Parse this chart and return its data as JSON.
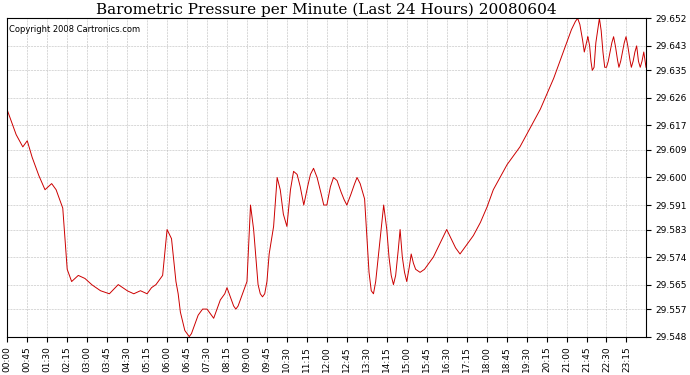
{
  "title": "Barometric Pressure per Minute (Last 24 Hours) 20080604",
  "copyright": "Copyright 2008 Cartronics.com",
  "line_color": "#cc0000",
  "bg_color": "#ffffff",
  "grid_color": "#bbbbbb",
  "ylim": [
    29.548,
    29.652
  ],
  "yticks": [
    29.548,
    29.557,
    29.565,
    29.574,
    29.583,
    29.591,
    29.6,
    29.609,
    29.617,
    29.626,
    29.635,
    29.643,
    29.652
  ],
  "xtick_labels": [
    "00:00",
    "00:45",
    "01:30",
    "02:15",
    "03:00",
    "03:45",
    "04:30",
    "05:15",
    "06:00",
    "06:45",
    "07:30",
    "08:15",
    "09:00",
    "09:45",
    "10:30",
    "11:15",
    "12:00",
    "12:45",
    "13:30",
    "14:15",
    "15:00",
    "15:45",
    "16:30",
    "17:15",
    "18:00",
    "18:45",
    "19:30",
    "20:15",
    "21:00",
    "21:45",
    "22:30",
    "23:15"
  ],
  "title_fontsize": 11,
  "tick_fontsize": 6.5,
  "copyright_fontsize": 6,
  "control_points": [
    [
      0,
      29.622
    ],
    [
      20,
      29.614
    ],
    [
      35,
      29.61
    ],
    [
      45,
      29.612
    ],
    [
      55,
      29.607
    ],
    [
      70,
      29.601
    ],
    [
      85,
      29.596
    ],
    [
      100,
      29.598
    ],
    [
      110,
      29.596
    ],
    [
      125,
      29.59
    ],
    [
      135,
      29.57
    ],
    [
      145,
      29.566
    ],
    [
      160,
      29.568
    ],
    [
      175,
      29.567
    ],
    [
      190,
      29.565
    ],
    [
      210,
      29.563
    ],
    [
      230,
      29.562
    ],
    [
      250,
      29.565
    ],
    [
      270,
      29.563
    ],
    [
      285,
      29.562
    ],
    [
      300,
      29.563
    ],
    [
      315,
      29.562
    ],
    [
      325,
      29.564
    ],
    [
      335,
      29.565
    ],
    [
      350,
      29.568
    ],
    [
      360,
      29.583
    ],
    [
      370,
      29.58
    ],
    [
      380,
      29.566
    ],
    [
      385,
      29.562
    ],
    [
      390,
      29.556
    ],
    [
      395,
      29.553
    ],
    [
      400,
      29.55
    ],
    [
      405,
      29.549
    ],
    [
      410,
      29.548
    ],
    [
      415,
      29.549
    ],
    [
      420,
      29.551
    ],
    [
      425,
      29.553
    ],
    [
      430,
      29.555
    ],
    [
      440,
      29.557
    ],
    [
      450,
      29.557
    ],
    [
      460,
      29.555
    ],
    [
      465,
      29.554
    ],
    [
      470,
      29.556
    ],
    [
      475,
      29.558
    ],
    [
      480,
      29.56
    ],
    [
      490,
      29.562
    ],
    [
      495,
      29.564
    ],
    [
      505,
      29.56
    ],
    [
      510,
      29.558
    ],
    [
      515,
      29.557
    ],
    [
      520,
      29.558
    ],
    [
      530,
      29.562
    ],
    [
      540,
      29.566
    ],
    [
      548,
      29.591
    ],
    [
      555,
      29.583
    ],
    [
      560,
      29.574
    ],
    [
      565,
      29.565
    ],
    [
      570,
      29.562
    ],
    [
      575,
      29.561
    ],
    [
      580,
      29.562
    ],
    [
      585,
      29.566
    ],
    [
      590,
      29.575
    ],
    [
      600,
      29.584
    ],
    [
      608,
      29.6
    ],
    [
      615,
      29.596
    ],
    [
      622,
      29.588
    ],
    [
      630,
      29.584
    ],
    [
      638,
      29.596
    ],
    [
      645,
      29.602
    ],
    [
      653,
      29.601
    ],
    [
      660,
      29.597
    ],
    [
      668,
      29.591
    ],
    [
      675,
      29.596
    ],
    [
      683,
      29.601
    ],
    [
      690,
      29.603
    ],
    [
      698,
      29.6
    ],
    [
      705,
      29.596
    ],
    [
      713,
      29.591
    ],
    [
      720,
      29.591
    ],
    [
      728,
      29.597
    ],
    [
      735,
      29.6
    ],
    [
      743,
      29.599
    ],
    [
      750,
      29.596
    ],
    [
      758,
      29.593
    ],
    [
      765,
      29.591
    ],
    [
      773,
      29.594
    ],
    [
      780,
      29.597
    ],
    [
      788,
      29.6
    ],
    [
      795,
      29.598
    ],
    [
      805,
      29.593
    ],
    [
      815,
      29.569
    ],
    [
      820,
      29.563
    ],
    [
      825,
      29.562
    ],
    [
      830,
      29.566
    ],
    [
      840,
      29.58
    ],
    [
      848,
      29.591
    ],
    [
      855,
      29.583
    ],
    [
      860,
      29.574
    ],
    [
      865,
      29.568
    ],
    [
      870,
      29.565
    ],
    [
      875,
      29.568
    ],
    [
      880,
      29.575
    ],
    [
      885,
      29.583
    ],
    [
      890,
      29.574
    ],
    [
      895,
      29.569
    ],
    [
      900,
      29.566
    ],
    [
      905,
      29.57
    ],
    [
      910,
      29.575
    ],
    [
      915,
      29.572
    ],
    [
      920,
      29.57
    ],
    [
      930,
      29.569
    ],
    [
      940,
      29.57
    ],
    [
      950,
      29.572
    ],
    [
      960,
      29.574
    ],
    [
      970,
      29.577
    ],
    [
      980,
      29.58
    ],
    [
      990,
      29.583
    ],
    [
      1000,
      29.58
    ],
    [
      1010,
      29.577
    ],
    [
      1020,
      29.575
    ],
    [
      1035,
      29.578
    ],
    [
      1050,
      29.581
    ],
    [
      1065,
      29.585
    ],
    [
      1080,
      29.59
    ],
    [
      1095,
      29.596
    ],
    [
      1110,
      29.6
    ],
    [
      1125,
      29.604
    ],
    [
      1140,
      29.607
    ],
    [
      1155,
      29.61
    ],
    [
      1170,
      29.614
    ],
    [
      1185,
      29.618
    ],
    [
      1200,
      29.622
    ],
    [
      1215,
      29.627
    ],
    [
      1230,
      29.632
    ],
    [
      1245,
      29.638
    ],
    [
      1260,
      29.644
    ],
    [
      1270,
      29.648
    ],
    [
      1280,
      29.651
    ],
    [
      1285,
      29.652
    ],
    [
      1290,
      29.65
    ],
    [
      1295,
      29.646
    ],
    [
      1300,
      29.641
    ],
    [
      1305,
      29.644
    ],
    [
      1308,
      29.646
    ],
    [
      1312,
      29.643
    ],
    [
      1315,
      29.638
    ],
    [
      1318,
      29.635
    ],
    [
      1322,
      29.636
    ],
    [
      1326,
      29.644
    ],
    [
      1330,
      29.648
    ],
    [
      1334,
      29.652
    ],
    [
      1338,
      29.648
    ],
    [
      1342,
      29.641
    ],
    [
      1346,
      29.636
    ],
    [
      1350,
      29.636
    ],
    [
      1354,
      29.638
    ],
    [
      1358,
      29.641
    ],
    [
      1362,
      29.644
    ],
    [
      1366,
      29.646
    ],
    [
      1370,
      29.643
    ],
    [
      1374,
      29.639
    ],
    [
      1378,
      29.636
    ],
    [
      1382,
      29.638
    ],
    [
      1386,
      29.641
    ],
    [
      1390,
      29.644
    ],
    [
      1394,
      29.646
    ],
    [
      1398,
      29.643
    ],
    [
      1402,
      29.639
    ],
    [
      1406,
      29.636
    ],
    [
      1410,
      29.638
    ],
    [
      1414,
      29.641
    ],
    [
      1418,
      29.643
    ],
    [
      1422,
      29.638
    ],
    [
      1426,
      29.636
    ],
    [
      1430,
      29.638
    ],
    [
      1434,
      29.641
    ],
    [
      1438,
      29.637
    ],
    [
      1439,
      29.636
    ]
  ]
}
